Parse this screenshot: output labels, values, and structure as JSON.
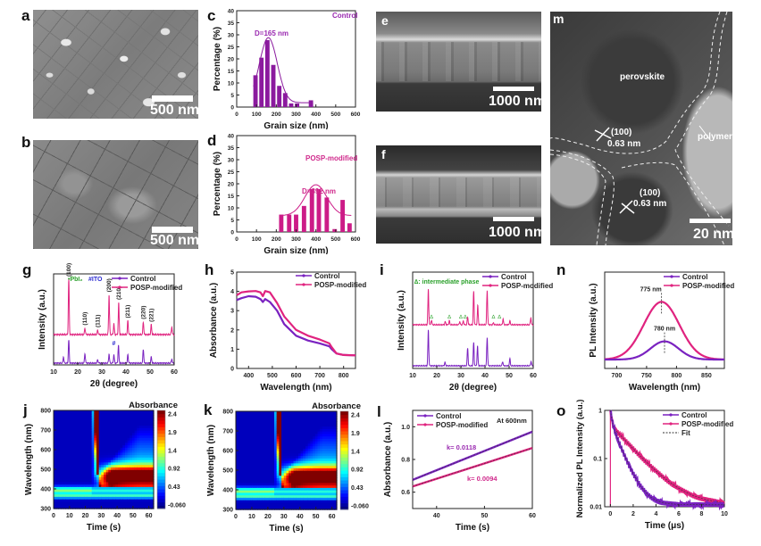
{
  "colors": {
    "control": "#7a22c0",
    "posp": "#e0237f",
    "bar_control": "#8b1a9e",
    "bar_posp": "#cc1b87",
    "annot_control": "#9a2ab0",
    "annot_posp": "#d02a8c",
    "intermediate": "#2aa02a",
    "ito": "#2b2bd0"
  },
  "panel_labels": [
    "a",
    "b",
    "c",
    "d",
    "e",
    "f",
    "g",
    "h",
    "i",
    "j",
    "k",
    "l",
    "m",
    "n",
    "o"
  ],
  "images": {
    "a": {
      "scale_bar": "500 nm"
    },
    "b": {
      "scale_bar": "500 nm"
    },
    "e": {
      "scale_bar": "1000 nm"
    },
    "f": {
      "scale_bar": "1000 nm"
    },
    "m": {
      "scale_bar": "20 nm",
      "labels": [
        "perovskite",
        "polymer",
        "(100)",
        "0.63 nm",
        "(100)",
        "0.63 nm"
      ]
    }
  },
  "chart_data": [
    {
      "id": "c",
      "type": "bar",
      "title": "Control",
      "annotation": "D=165 nm",
      "xlabel": "Grain size (nm)",
      "ylabel": "Percentage (%)",
      "xlim": [
        0,
        600
      ],
      "ylim": [
        0,
        40
      ],
      "xticks": [
        0,
        100,
        200,
        300,
        400,
        500,
        600
      ],
      "yticks": [
        0,
        5,
        10,
        15,
        20,
        25,
        30,
        35,
        40
      ],
      "x": [
        95,
        125,
        155,
        185,
        215,
        245,
        275,
        305,
        375
      ],
      "values": [
        13.2,
        20.5,
        27.8,
        17.5,
        8.8,
        5.8,
        1.5,
        1.5,
        2.8
      ],
      "fit": {
        "mean": 160,
        "sigma": 45,
        "amp": 27,
        "base": 1.8
      }
    },
    {
      "id": "d",
      "type": "bar",
      "title": "POSP-modified",
      "annotation": "D=392 nm",
      "xlabel": "Grain size (nm)",
      "ylabel": "Percentage (%)",
      "xlim": [
        0,
        600
      ],
      "ylim": [
        0,
        40
      ],
      "xticks": [
        0,
        100,
        200,
        300,
        400,
        500,
        600
      ],
      "yticks": [
        0,
        5,
        10,
        15,
        20,
        25,
        30,
        35,
        40
      ],
      "x": [
        225,
        265,
        300,
        340,
        380,
        415,
        455,
        495,
        535,
        570
      ],
      "values": [
        7.2,
        7.2,
        7.2,
        10.8,
        17.8,
        17.8,
        14.3,
        1.2,
        13.3,
        3.6
      ],
      "fit": {
        "mean": 400,
        "sigma": 55,
        "amp": 12.8,
        "base": 6.8
      }
    },
    {
      "id": "g",
      "type": "line",
      "title": "",
      "xlabel": "2θ (degree)",
      "ylabel": "Intensity (a.u.)",
      "xlim": [
        10,
        60
      ],
      "xticks": [
        10,
        20,
        30,
        40,
        50,
        60
      ],
      "legend": [
        "Control",
        "POSP-modified"
      ],
      "legend_position": "top-right",
      "markers_legend": [
        "•PbI₂",
        "#ITO"
      ],
      "peaks_posp": [
        {
          "x": 16.3,
          "h": 1.0,
          "label": "(100)"
        },
        {
          "x": 23.0,
          "h": 0.12,
          "label": "(110)"
        },
        {
          "x": 28.3,
          "h": 0.08,
          "label": "(111)"
        },
        {
          "x": 33.0,
          "h": 0.72,
          "label": "(200)"
        },
        {
          "x": 35.0,
          "h": 0.2,
          "label": ""
        },
        {
          "x": 37.0,
          "h": 0.58,
          "label": "(210)"
        },
        {
          "x": 40.8,
          "h": 0.25,
          "label": "(211)"
        },
        {
          "x": 47.2,
          "h": 0.23,
          "label": "(220)"
        },
        {
          "x": 50.5,
          "h": 0.18,
          "label": "(221)"
        },
        {
          "x": 59.0,
          "h": 0.14,
          "label": ""
        }
      ],
      "peaks_control": [
        {
          "x": 14.1,
          "h": 0.15
        },
        {
          "x": 16.3,
          "h": 0.55
        },
        {
          "x": 23.0,
          "h": 0.23
        },
        {
          "x": 28.3,
          "h": 0.08
        },
        {
          "x": 33.0,
          "h": 0.22
        },
        {
          "x": 35.0,
          "h": 0.2
        },
        {
          "x": 36.9,
          "h": 0.42
        },
        {
          "x": 40.8,
          "h": 0.2
        },
        {
          "x": 47.2,
          "h": 0.33
        },
        {
          "x": 50.5,
          "h": 0.15
        },
        {
          "x": 59.0,
          "h": 0.1
        }
      ]
    },
    {
      "id": "h",
      "type": "line",
      "title": "",
      "xlabel": "Wavelength (nm)",
      "ylabel": "Absorbance (a.u.)",
      "xlim": [
        350,
        850
      ],
      "ylim": [
        0,
        5
      ],
      "xticks": [
        400,
        500,
        600,
        700,
        800
      ],
      "yticks": [
        0,
        1,
        2,
        3,
        4,
        5
      ],
      "legend": [
        "Control",
        "POSP-modified"
      ],
      "legend_position": "top-right",
      "series": [
        {
          "name": "Control",
          "x": [
            350,
            370,
            400,
            430,
            450,
            460,
            470,
            490,
            520,
            550,
            600,
            650,
            700,
            740,
            750,
            770,
            800,
            850
          ],
          "y": [
            3.55,
            3.65,
            3.75,
            3.72,
            3.6,
            3.45,
            3.6,
            3.45,
            3.0,
            2.3,
            1.7,
            1.45,
            1.3,
            1.15,
            1.0,
            0.78,
            0.7,
            0.68
          ]
        },
        {
          "name": "POSP-modified",
          "x": [
            350,
            370,
            400,
            430,
            450,
            460,
            470,
            490,
            520,
            550,
            600,
            650,
            700,
            740,
            750,
            770,
            800,
            850
          ],
          "y": [
            3.8,
            3.95,
            4.0,
            4.02,
            3.95,
            3.75,
            4.02,
            3.95,
            3.4,
            2.7,
            2.0,
            1.7,
            1.5,
            1.3,
            1.1,
            0.78,
            0.7,
            0.68
          ]
        }
      ]
    },
    {
      "id": "i",
      "type": "line",
      "title": "",
      "xlabel": "2θ (degree)",
      "ylabel": "Intensity (a.u.)",
      "xlim": [
        10,
        60
      ],
      "xticks": [
        10,
        20,
        30,
        40,
        50,
        60
      ],
      "legend": [
        "Control",
        "POSP-modified"
      ],
      "legend_position": "top-right",
      "annotation": "∆: intermediate phase",
      "peaks_posp": [
        {
          "x": 16.5,
          "h": 0.9
        },
        {
          "x": 17.8,
          "h": 0.12
        },
        {
          "x": 23.5,
          "h": 0.08
        },
        {
          "x": 25.2,
          "h": 0.1
        },
        {
          "x": 29.5,
          "h": 0.08
        },
        {
          "x": 31.0,
          "h": 0.1
        },
        {
          "x": 32.8,
          "h": 0.2
        },
        {
          "x": 35.3,
          "h": 0.85
        },
        {
          "x": 37.0,
          "h": 0.5
        },
        {
          "x": 40.9,
          "h": 0.88
        },
        {
          "x": 43.5,
          "h": 0.05
        },
        {
          "x": 47.5,
          "h": 0.15
        },
        {
          "x": 50.3,
          "h": 0.1
        },
        {
          "x": 59.0,
          "h": 0.18
        }
      ],
      "peaks_control": [
        {
          "x": 16.5,
          "h": 1.0
        },
        {
          "x": 23.4,
          "h": 0.1
        },
        {
          "x": 32.8,
          "h": 0.5
        },
        {
          "x": 35.3,
          "h": 0.65
        },
        {
          "x": 36.9,
          "h": 0.55
        },
        {
          "x": 40.9,
          "h": 0.8
        },
        {
          "x": 47.3,
          "h": 0.12
        },
        {
          "x": 50.3,
          "h": 0.2
        },
        {
          "x": 59.1,
          "h": 0.12
        }
      ],
      "delta_x": [
        17.8,
        25.2,
        30.0,
        31.8,
        43.5,
        46.0
      ]
    },
    {
      "id": "n",
      "type": "line",
      "title": "",
      "xlabel": "Wavelength (nm)",
      "ylabel": "PL Intensity (a.u.)",
      "xlim": [
        680,
        880
      ],
      "xticks": [
        700,
        750,
        800,
        850
      ],
      "legend": [
        "Control",
        "POSP-modified"
      ],
      "legend_position": "top-right",
      "series": [
        {
          "name": "Control",
          "peak": 780,
          "height": 0.3,
          "fwhm": 55,
          "label": "780 nm"
        },
        {
          "name": "POSP-modified",
          "peak": 775,
          "height": 0.95,
          "fwhm": 70,
          "label": "775 nm"
        }
      ]
    },
    {
      "id": "j",
      "type": "heatmap",
      "title": "Absorbance",
      "xlabel": "Time (s)",
      "ylabel": "Wavelength (nm)",
      "xlim": [
        0,
        63
      ],
      "ylim": [
        300,
        800
      ],
      "xticks": [
        0,
        10,
        20,
        30,
        40,
        50,
        60
      ],
      "yticks": [
        300,
        400,
        500,
        600,
        700,
        800
      ],
      "colorbar_ticks": [
        "2.4",
        "1.9",
        "1.4",
        "0.92",
        "0.43",
        "-0.060"
      ],
      "transition_time": 24
    },
    {
      "id": "k",
      "type": "heatmap",
      "title": "Absorbance",
      "xlabel": "Time (s)",
      "ylabel": "Wavelength (nm)",
      "xlim": [
        0,
        63
      ],
      "ylim": [
        300,
        800
      ],
      "xticks": [
        0,
        10,
        20,
        30,
        40,
        50,
        60
      ],
      "yticks": [
        300,
        400,
        500,
        600,
        700,
        800
      ],
      "colorbar_ticks": [
        "2.4",
        "1.9",
        "1.4",
        "0.92",
        "0.43",
        "-0.060"
      ],
      "transition_time": 24
    },
    {
      "id": "l",
      "type": "line",
      "title": "",
      "xlabel": "Time (s)",
      "ylabel": "Absorbance (a.u.)",
      "xlim": [
        35,
        60
      ],
      "ylim": [
        0.5,
        1.1
      ],
      "xticks": [
        40,
        50,
        60
      ],
      "yticks": [
        0.6,
        0.8,
        1.0
      ],
      "legend": [
        "Control",
        "POSP-modified"
      ],
      "legend_position": "top-left",
      "annotation": "At  600nm",
      "series": [
        {
          "name": "Control",
          "x": [
            35,
            60
          ],
          "y": [
            0.675,
            0.97
          ],
          "k_label": "k= 0.0118"
        },
        {
          "name": "POSP-modified",
          "x": [
            35,
            60
          ],
          "y": [
            0.635,
            0.87
          ],
          "k_label": "k= 0.0094"
        }
      ]
    },
    {
      "id": "o",
      "type": "line",
      "title": "",
      "xlabel": "Time (μs)",
      "ylabel": "Normalized PL Intensity (a.u.)",
      "xlim": [
        -0.5,
        10
      ],
      "ylim": [
        0.01,
        1
      ],
      "yscale": "log",
      "xticks": [
        0,
        2,
        4,
        6,
        8,
        10
      ],
      "yticks": [
        "0.01",
        "0.1",
        "1"
      ],
      "legend": [
        "Control",
        "POSP-modified",
        "Fit"
      ],
      "legend_position": "top-right",
      "series": [
        {
          "name": "Control",
          "tau1": 0.15,
          "a1": 0.45,
          "tau2": 0.75,
          "a2": 0.55,
          "floor": 0.011
        },
        {
          "name": "POSP-modified",
          "tau1": 0.1,
          "a1": 0.5,
          "tau2": 1.65,
          "a2": 0.5,
          "floor": 0.011
        }
      ]
    }
  ]
}
